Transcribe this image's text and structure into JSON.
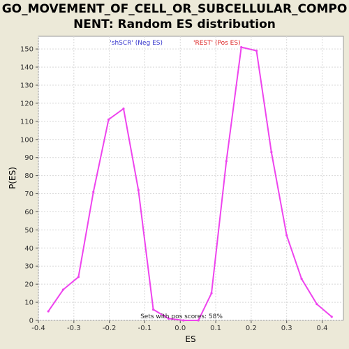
{
  "chart_data": {
    "type": "line",
    "title_line1": "GO_MOVEMENT_OF_CELL_OR_SUBCELLULAR_COMPO",
    "title_line2": "NENT: Random ES distribution",
    "xlabel": "ES",
    "ylabel": "P(ES)",
    "xlim": [
      -0.4,
      0.46
    ],
    "ylim": [
      0,
      157
    ],
    "xticks": [
      -0.4,
      -0.3,
      -0.2,
      -0.1,
      0.0,
      0.1,
      0.2,
      0.3,
      0.4
    ],
    "xtick_labels": [
      "-0.4",
      "-0.3",
      "-0.2",
      "-0.1",
      "0.0",
      "0.1",
      "0.2",
      "0.3",
      "0.4"
    ],
    "yticks": [
      0,
      10,
      20,
      30,
      40,
      50,
      60,
      70,
      80,
      90,
      100,
      110,
      120,
      130,
      140,
      150
    ],
    "grid": true,
    "legend": {
      "placement": "top-center",
      "neg_label": "'shSCR' (Neg ES)",
      "pos_label": "'REST' (Pos ES)",
      "neg_color": "#3333cc",
      "pos_color": "#dd2222"
    },
    "line_color": "#ee44ee",
    "annotation": "Sets with pos scores: 58%",
    "series": [
      {
        "x": [
          -0.372,
          -0.33,
          -0.287,
          -0.245,
          -0.202,
          -0.16,
          -0.118,
          -0.076,
          -0.033,
          0.009,
          0.051,
          0.088,
          0.13,
          0.172,
          0.215,
          0.257,
          0.3,
          0.342,
          0.385,
          0.427
        ],
        "y": [
          5,
          17,
          24,
          71,
          111,
          117,
          72,
          6,
          1,
          0,
          0,
          15,
          88,
          151,
          149,
          93,
          47,
          23,
          9,
          2
        ]
      }
    ]
  }
}
